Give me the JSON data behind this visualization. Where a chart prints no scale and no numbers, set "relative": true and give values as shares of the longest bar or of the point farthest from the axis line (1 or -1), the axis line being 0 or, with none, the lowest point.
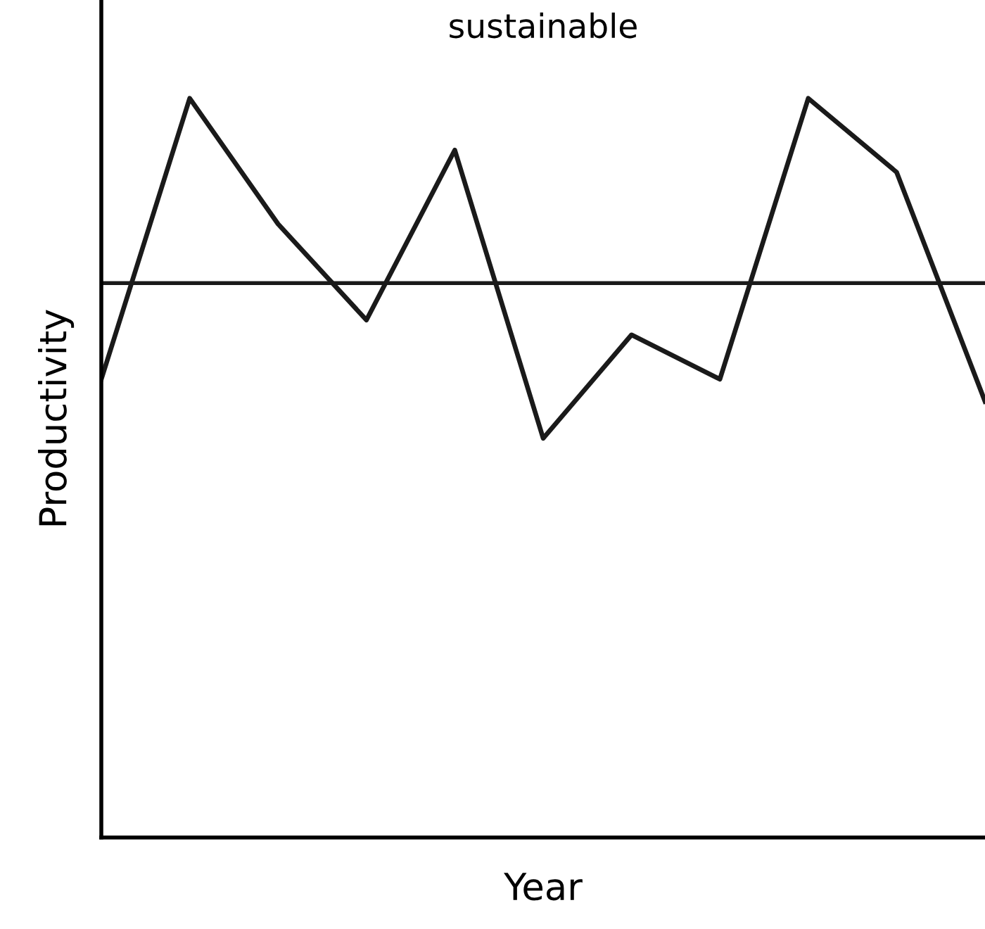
{
  "chart_data": {
    "type": "line",
    "title": "sustainable",
    "xlabel": "Year",
    "ylabel": "Productivity",
    "relative": true,
    "categories": [
      null,
      null,
      null,
      null,
      null,
      null,
      null,
      null,
      null,
      null,
      null
    ],
    "series": [
      {
        "color": "#1a1a1a",
        "values": [
          0.62,
          1.0,
          0.83,
          0.7,
          0.93,
          0.54,
          0.68,
          0.62,
          1.0,
          0.9,
          0.59
        ]
      }
    ],
    "ref_lines": [
      {
        "axis": "y",
        "value": 0.75,
        "label": null,
        "color": "#1a1a1a"
      }
    ],
    "grid": false,
    "legend": false,
    "marker": "none",
    "line_style": "solid"
  }
}
